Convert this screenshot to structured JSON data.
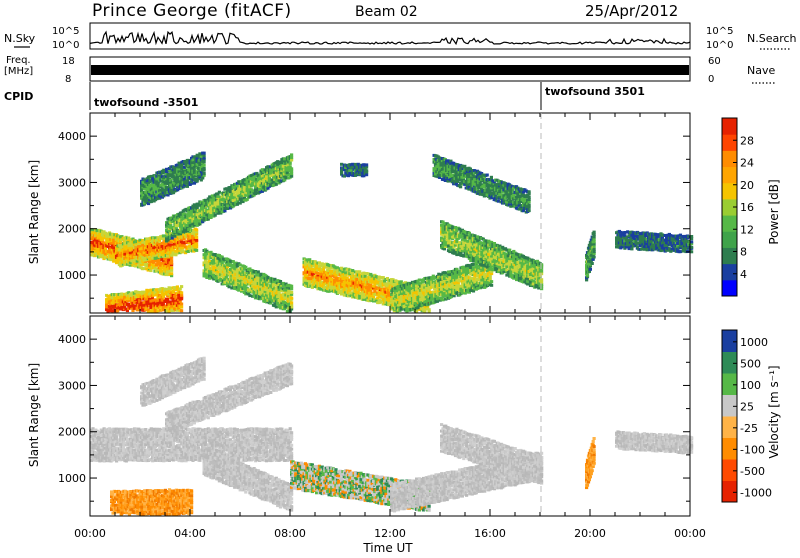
{
  "header": {
    "station": "Prince George (fitACF)",
    "beam": "Beam 02",
    "date": "25/Apr/2012"
  },
  "status_panels": {
    "nsky_label": "N.Sky",
    "nsky_ticks": [
      "10^5",
      "10^0"
    ],
    "nsearch_label": "N.Search",
    "nsearch_ticks": [
      "10^5",
      "10^0"
    ],
    "freq_label": "Freq.",
    "freq_unit": "[MHz]",
    "freq_ticks": [
      "18",
      "8"
    ],
    "nave_label": "Nave",
    "nave_ticks": [
      "60",
      "0"
    ],
    "cpid_label": "CPID",
    "cpid_segments": [
      {
        "name": "twofsound -3501",
        "start_hour": 0
      },
      {
        "name": "twofsound 3501",
        "start_hour": 18
      }
    ]
  },
  "chart_data": [
    {
      "type": "heatmap",
      "title": "",
      "xlabel": "",
      "ylabel": "Slant Range [km]",
      "xlim": [
        0,
        24
      ],
      "ylim": [
        180,
        4500
      ],
      "y_ticks": [
        "1000",
        "2000",
        "3000",
        "4000"
      ],
      "colorbar": {
        "label": "Power [dB]",
        "ticks": [
          "28",
          "24",
          "20",
          "16",
          "12",
          "8",
          "4"
        ],
        "colors": [
          "#0000ff",
          "#1a3fa0",
          "#2e7d4f",
          "#56b847",
          "#f5c400",
          "#ff8c00",
          "#e62200"
        ]
      },
      "features": [
        {
          "t0": 0.0,
          "t1": 3.2,
          "r0": 1750,
          "r1": 1300,
          "w": 260,
          "level": 0.9
        },
        {
          "t0": 1.0,
          "t1": 4.2,
          "r0": 1450,
          "r1": 1800,
          "w": 200,
          "level": 0.85
        },
        {
          "t0": 0.6,
          "t1": 3.6,
          "r0": 300,
          "r1": 500,
          "w": 260,
          "level": 0.95
        },
        {
          "t0": 3.0,
          "t1": 8.0,
          "r0": 2000,
          "r1": 3400,
          "w": 240,
          "level": 0.45
        },
        {
          "t0": 2.0,
          "t1": 4.5,
          "r0": 2800,
          "r1": 3400,
          "w": 250,
          "level": 0.3
        },
        {
          "t0": 4.5,
          "t1": 8.0,
          "r0": 1300,
          "r1": 500,
          "w": 300,
          "level": 0.55
        },
        {
          "t0": 8.5,
          "t1": 13.5,
          "r0": 1100,
          "r1": 450,
          "w": 260,
          "level": 0.8
        },
        {
          "t0": 12.0,
          "t1": 16.0,
          "r0": 450,
          "r1": 1100,
          "w": 260,
          "level": 0.55
        },
        {
          "t0": 14.0,
          "t1": 18.0,
          "r0": 1900,
          "r1": 1000,
          "w": 250,
          "level": 0.5
        },
        {
          "t0": 13.7,
          "t1": 17.5,
          "r0": 3400,
          "r1": 2600,
          "w": 200,
          "level": 0.3
        },
        {
          "t0": 19.8,
          "t1": 20.1,
          "r0": 1200,
          "r1": 1700,
          "w": 300,
          "level": 0.35
        },
        {
          "t0": 21.0,
          "t1": 24.0,
          "r0": 1800,
          "r1": 1700,
          "w": 150,
          "level": 0.2
        },
        {
          "t0": 10.0,
          "t1": 11.0,
          "r0": 3300,
          "r1": 3300,
          "w": 120,
          "level": 0.2
        }
      ]
    },
    {
      "type": "heatmap",
      "title": "",
      "xlabel": "Time UT",
      "ylabel": "Slant Range [km]",
      "xlim": [
        0,
        24
      ],
      "ylim": [
        180,
        4500
      ],
      "x_ticks": [
        "00:00",
        "04:00",
        "08:00",
        "12:00",
        "16:00",
        "20:00",
        "00:00"
      ],
      "y_ticks": [
        "1000",
        "2000",
        "3000",
        "4000"
      ],
      "colorbar": {
        "label": "Velocity [m s⁻¹]",
        "ticks": [
          "1000",
          "500",
          "100",
          "25",
          "-25",
          "-100",
          "-500",
          "-1000"
        ],
        "colors": [
          "#e62200",
          "#ff4a00",
          "#ff8c00",
          "#ffb347",
          "#c8c8c8",
          "#56b847",
          "#2e8b57",
          "#1a3fa0"
        ]
      },
      "features": [
        {
          "t0": 0.0,
          "t1": 8.0,
          "r0": 1750,
          "r1": 1750,
          "w": 350,
          "kind": "gray"
        },
        {
          "t0": 0.8,
          "t1": 4.0,
          "r0": 450,
          "r1": 500,
          "w": 300,
          "kind": "orange"
        },
        {
          "t0": 3.0,
          "t1": 8.0,
          "r0": 2200,
          "r1": 3300,
          "w": 220,
          "kind": "gray"
        },
        {
          "t0": 2.0,
          "t1": 4.5,
          "r0": 2800,
          "r1": 3400,
          "w": 200,
          "kind": "gray"
        },
        {
          "t0": 4.5,
          "t1": 8.0,
          "r0": 1400,
          "r1": 600,
          "w": 300,
          "kind": "gray"
        },
        {
          "t0": 8.0,
          "t1": 13.5,
          "r0": 1100,
          "r1": 600,
          "w": 260,
          "kind": "mixed"
        },
        {
          "t0": 12.0,
          "t1": 18.0,
          "r0": 600,
          "r1": 1300,
          "w": 260,
          "kind": "gray"
        },
        {
          "t0": 14.0,
          "t1": 18.0,
          "r0": 1900,
          "r1": 1200,
          "w": 250,
          "kind": "gray"
        },
        {
          "t0": 19.8,
          "t1": 20.1,
          "r0": 1100,
          "r1": 1600,
          "w": 300,
          "kind": "orange"
        },
        {
          "t0": 21.0,
          "t1": 24.0,
          "r0": 1850,
          "r1": 1750,
          "w": 150,
          "kind": "gray"
        }
      ]
    }
  ]
}
